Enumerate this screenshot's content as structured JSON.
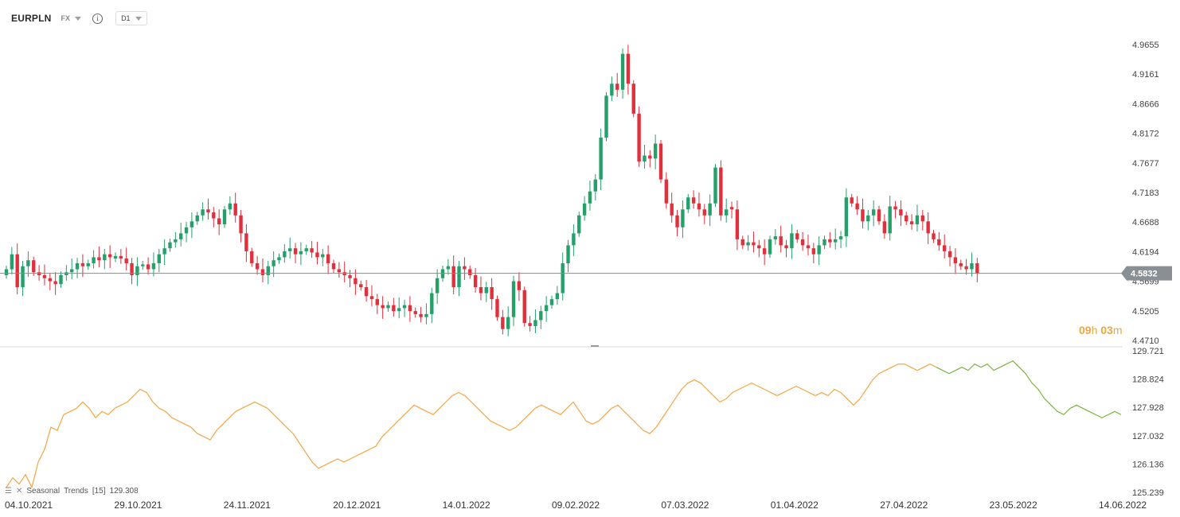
{
  "header": {
    "symbol": "EURPLN",
    "market": "FX",
    "timeframe": "D1"
  },
  "countdown": {
    "hours": "09",
    "h_unit": "h",
    "minutes": "03",
    "m_unit": "m"
  },
  "indicator": {
    "name": "Seasonal",
    "label": "Trends",
    "period": "[15]",
    "value": "129.308"
  },
  "colors": {
    "up": "#26a06b",
    "down": "#e0303c",
    "trend_past": "#f4a646",
    "trend_future": "#7cb342",
    "price_line": "#8a8a8a",
    "price_tag": "#8a8f96"
  },
  "chart_data": [
    {
      "type": "candlestick",
      "title": "",
      "ylim": [
        4.471,
        4.9655
      ],
      "y_ticks": [
        "4.9655",
        "4.9161",
        "4.8666",
        "4.8172",
        "4.7677",
        "4.7183",
        "4.6688",
        "4.6194",
        "4.5699",
        "4.5205",
        "4.4710"
      ],
      "current_price": "4.5832",
      "x_labels": [
        "04.10.2021",
        "29.10.2021",
        "24.11.2021",
        "20.12.2021",
        "14.01.2022",
        "09.02.2022",
        "07.03.2022",
        "01.04.2022",
        "27.04.2022",
        "23.05.2022",
        "14.06.2022"
      ],
      "close": [
        4.59,
        4.615,
        4.56,
        4.595,
        4.605,
        4.585,
        4.58,
        4.575,
        4.57,
        4.565,
        4.58,
        4.585,
        4.59,
        4.6,
        4.595,
        4.6,
        4.61,
        4.605,
        4.615,
        4.61,
        4.612,
        4.608,
        4.6,
        4.58,
        4.595,
        4.598,
        4.59,
        4.6,
        4.615,
        4.625,
        4.635,
        4.64,
        4.65,
        4.66,
        4.67,
        4.68,
        4.69,
        4.685,
        4.675,
        4.665,
        4.69,
        4.7,
        4.68,
        4.65,
        4.62,
        4.6,
        4.59,
        4.58,
        4.595,
        4.605,
        4.61,
        4.62,
        4.625,
        4.615,
        4.62,
        4.625,
        4.618,
        4.61,
        4.615,
        4.6,
        4.59,
        4.585,
        4.58,
        4.575,
        4.565,
        4.56,
        4.545,
        4.54,
        4.53,
        4.525,
        4.53,
        4.52,
        4.525,
        4.53,
        4.52,
        4.515,
        4.51,
        4.515,
        4.55,
        4.575,
        4.59,
        4.595,
        4.56,
        4.595,
        4.59,
        4.58,
        4.56,
        4.55,
        4.56,
        4.54,
        4.51,
        4.49,
        4.51,
        4.57,
        4.555,
        4.5,
        4.495,
        4.505,
        4.52,
        4.53,
        4.54,
        4.55,
        4.6,
        4.63,
        4.65,
        4.68,
        4.7,
        4.72,
        4.74,
        4.81,
        4.88,
        4.9,
        4.89,
        4.95,
        4.9,
        4.85,
        4.77,
        4.78,
        4.775,
        4.8,
        4.74,
        4.7,
        4.68,
        4.66,
        4.69,
        4.71,
        4.7,
        4.69,
        4.68,
        4.7,
        4.76,
        4.68,
        4.69,
        4.69,
        4.64,
        4.63,
        4.635,
        4.63,
        4.625,
        4.615,
        4.64,
        4.645,
        4.63,
        4.625,
        4.65,
        4.64,
        4.63,
        4.625,
        4.615,
        4.63,
        4.64,
        4.635,
        4.64,
        4.645,
        4.71,
        4.7,
        4.69,
        4.67,
        4.68,
        4.69,
        4.67,
        4.65,
        4.695,
        4.69,
        4.68,
        4.67,
        4.665,
        4.68,
        4.67,
        4.65,
        4.64,
        4.63,
        4.62,
        4.61,
        4.6,
        4.595,
        4.59,
        4.6,
        4.583
      ],
      "highs": "drawn as wicks",
      "indicator_range": [
        125.239,
        129.721
      ],
      "indicator_ticks": [
        "129.721",
        "128.824",
        "127.928",
        "127.032",
        "126.136",
        "125.239"
      ],
      "trend": [
        125.4,
        125.7,
        125.5,
        125.8,
        125.4,
        126.2,
        126.6,
        127.3,
        127.2,
        127.7,
        127.8,
        127.9,
        128.1,
        127.9,
        127.6,
        127.8,
        127.7,
        127.9,
        128.0,
        128.1,
        128.3,
        128.5,
        128.4,
        128.1,
        127.9,
        127.8,
        127.6,
        127.5,
        127.4,
        127.3,
        127.1,
        127.0,
        126.9,
        127.2,
        127.4,
        127.6,
        127.8,
        127.9,
        128.0,
        128.1,
        128.0,
        127.9,
        127.7,
        127.5,
        127.3,
        127.1,
        126.8,
        126.5,
        126.2,
        126.0,
        126.1,
        126.2,
        126.3,
        126.2,
        126.3,
        126.4,
        126.5,
        126.6,
        126.7,
        127.0,
        127.2,
        127.4,
        127.6,
        127.8,
        128.0,
        127.9,
        127.8,
        127.7,
        127.9,
        128.1,
        128.3,
        128.4,
        128.3,
        128.1,
        127.9,
        127.7,
        127.5,
        127.4,
        127.3,
        127.2,
        127.3,
        127.5,
        127.7,
        127.9,
        128.0,
        127.9,
        127.8,
        127.7,
        127.9,
        128.1,
        127.8,
        127.5,
        127.4,
        127.5,
        127.7,
        127.9,
        128.0,
        127.8,
        127.6,
        127.4,
        127.2,
        127.1,
        127.3,
        127.6,
        127.9,
        128.2,
        128.5,
        128.7,
        128.8,
        128.7,
        128.5,
        128.3,
        128.1,
        128.2,
        128.4,
        128.5,
        128.6,
        128.7,
        128.6,
        128.5,
        128.4,
        128.3,
        128.4,
        128.5,
        128.6,
        128.5,
        128.4,
        128.3,
        128.4,
        128.3,
        128.5,
        128.4,
        128.2,
        128.0,
        128.2,
        128.5,
        128.8,
        129.0,
        129.1,
        129.2,
        129.3,
        129.3,
        129.2,
        129.1,
        129.2,
        129.3,
        129.2,
        129.1,
        129.0,
        129.1,
        129.2,
        129.1,
        129.3,
        129.2,
        129.3,
        129.1,
        129.2,
        129.3,
        129.4,
        129.2,
        129.0,
        128.7,
        128.5,
        128.2,
        128.0,
        127.8,
        127.7,
        127.9,
        128.0,
        127.9,
        127.8,
        127.7,
        127.6,
        127.7,
        127.8,
        127.7
      ]
    }
  ]
}
